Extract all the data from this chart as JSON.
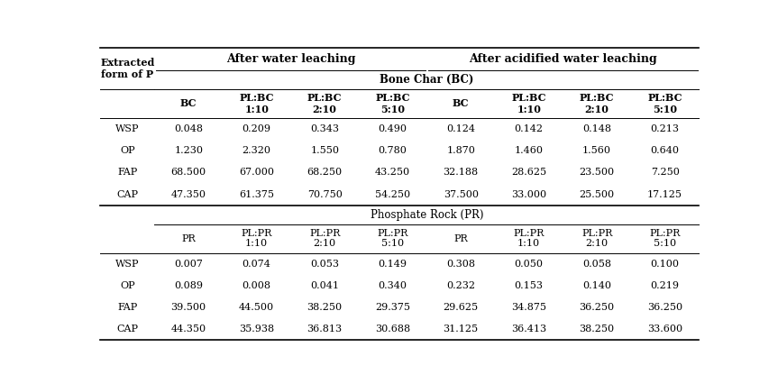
{
  "top_headers": {
    "water_leaching": "After water leaching",
    "acidified_water_leaching": "After acidified water leaching"
  },
  "row_header": "Extracted\nform of P",
  "bc_section_label": "Bone Char (BC)",
  "pr_section_label": "Phosphate Rock (PR)",
  "bc_col_headers": [
    "BC",
    "PL:BC\n1:10",
    "PL:BC\n2:10",
    "PL:BC\n5:10",
    "BC",
    "PL:BC\n1:10",
    "PL:BC\n2:10",
    "PL:BC\n5:10"
  ],
  "pr_col_headers": [
    "PR",
    "PL:PR\n1:10",
    "PL:PR\n2:10",
    "PL:PR\n5:10",
    "PR",
    "PL:PR\n1:10",
    "PL:PR\n2:10",
    "PL:PR\n5:10"
  ],
  "row_labels": [
    "WSP",
    "OP",
    "FAP",
    "CAP"
  ],
  "bc_data": [
    [
      "0.048",
      "0.209",
      "0.343",
      "0.490",
      "0.124",
      "0.142",
      "0.148",
      "0.213"
    ],
    [
      "1.230",
      "2.320",
      "1.550",
      "0.780",
      "1.870",
      "1.460",
      "1.560",
      "0.640"
    ],
    [
      "68.500",
      "67.000",
      "68.250",
      "43.250",
      "32.188",
      "28.625",
      "23.500",
      "7.250"
    ],
    [
      "47.350",
      "61.375",
      "70.750",
      "54.250",
      "37.500",
      "33.000",
      "25.500",
      "17.125"
    ]
  ],
  "pr_data": [
    [
      "0.007",
      "0.074",
      "0.053",
      "0.149",
      "0.308",
      "0.050",
      "0.058",
      "0.100"
    ],
    [
      "0.089",
      "0.008",
      "0.041",
      "0.340",
      "0.232",
      "0.153",
      "0.140",
      "0.219"
    ],
    [
      "39.500",
      "44.500",
      "38.250",
      "29.375",
      "29.625",
      "34.875",
      "36.250",
      "36.250"
    ],
    [
      "44.350",
      "35.938",
      "36.813",
      "30.688",
      "31.125",
      "36.413",
      "38.250",
      "33.600"
    ]
  ],
  "bg_color": "#ffffff",
  "text_color": "#000000",
  "font_size_data": 8.0,
  "font_size_header": 8.0,
  "font_size_top": 9.0,
  "font_size_section": 8.5
}
